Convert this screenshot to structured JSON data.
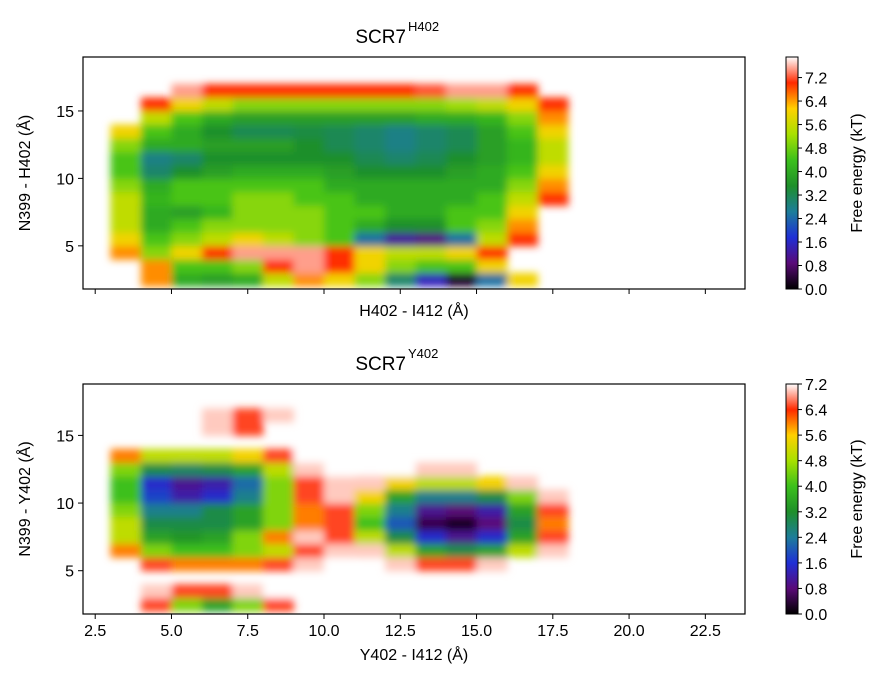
{
  "chart_data": [
    {
      "type": "heatmap",
      "title": "SCR7",
      "title_superscript": "H402",
      "xlabel": "H402 - I412 (Å)",
      "ylabel": "N399 - H402 (Å)",
      "colorbar_label": "Free energy (kT)",
      "xtick_labels": false,
      "x_edges": [
        3,
        4,
        5,
        6,
        7,
        8,
        9,
        10,
        11,
        12,
        13,
        14,
        15,
        16,
        17,
        18
      ],
      "y_edges": [
        2,
        3,
        4,
        5,
        6,
        7,
        8,
        9,
        10,
        11,
        12,
        13,
        14,
        15,
        16,
        17
      ],
      "z": [
        [
          null,
          6.5,
          4,
          3.8,
          4,
          5.5,
          6.5,
          6,
          5,
          3,
          1.5,
          0.3,
          2.5,
          6,
          null
        ],
        [
          null,
          6.5,
          4.5,
          4.5,
          5,
          7,
          7.5,
          7,
          6,
          5,
          4.5,
          4.5,
          6,
          null,
          null
        ],
        [
          6.5,
          5,
          6,
          7,
          7.5,
          7.5,
          7.5,
          7,
          6,
          5.5,
          5.5,
          6,
          7,
          null,
          null
        ],
        [
          6,
          4.5,
          5,
          5.5,
          6,
          5.5,
          5,
          4.5,
          2.5,
          1.2,
          1,
          2.5,
          5.5,
          7,
          null
        ],
        [
          5.5,
          4,
          4.5,
          5,
          5,
          5,
          5,
          4.5,
          4,
          3.5,
          3.5,
          4.5,
          5,
          6.5,
          null
        ],
        [
          5.5,
          4,
          3.8,
          4.2,
          5,
          5,
          5,
          4.5,
          4.5,
          4,
          4,
          4.5,
          4.5,
          6,
          null
        ],
        [
          5.5,
          4.2,
          4.5,
          4.5,
          5,
          5,
          4.5,
          4.5,
          4,
          4,
          4,
          4,
          4.5,
          5.5,
          7
        ],
        [
          5,
          4,
          4.5,
          4.5,
          4.5,
          4.5,
          4.5,
          4,
          4,
          4,
          4,
          4,
          4,
          5,
          6.5
        ],
        [
          4.5,
          3,
          3.5,
          3.8,
          4,
          4,
          4,
          3.8,
          3.5,
          3.5,
          3.5,
          3.8,
          4,
          4.5,
          6
        ],
        [
          4.5,
          2.8,
          3,
          3.5,
          3.5,
          3.5,
          3.5,
          3.5,
          3.2,
          3,
          3.2,
          3.5,
          3.8,
          4.2,
          5.5
        ],
        [
          5,
          4,
          4,
          3.8,
          3.8,
          3.8,
          3.5,
          3.2,
          3,
          2.8,
          3,
          3.2,
          3.8,
          4.2,
          5.5
        ],
        [
          6,
          4.5,
          4,
          3.5,
          3.2,
          3.2,
          3.3,
          3.2,
          3,
          2.8,
          3,
          3.2,
          3.8,
          4.5,
          6
        ],
        [
          null,
          5.5,
          4.5,
          4,
          3.8,
          3.8,
          3.8,
          3.8,
          3.8,
          3.8,
          4,
          4,
          4.2,
          5,
          6.5
        ],
        [
          null,
          7,
          6,
          5.5,
          5,
          5,
          5,
          5,
          5,
          5,
          5,
          5.2,
          5.5,
          6,
          7
        ],
        [
          null,
          null,
          7.5,
          7,
          7,
          7,
          7,
          7,
          7,
          7,
          7.2,
          7.5,
          7.5,
          7,
          null
        ]
      ],
      "xlim": [
        2.1,
        23.8
      ],
      "ylim": [
        1.8,
        19
      ],
      "xticks": [
        2.5,
        {
          "value": 5,
          "label": "5.0"
        },
        7.5,
        {
          "value": 10,
          "label": "10.0"
        },
        12.5,
        {
          "value": 15,
          "label": "15.0"
        },
        17.5,
        {
          "value": 20,
          "label": "20.0"
        },
        22.5
      ],
      "yticks": [
        5,
        10,
        15
      ],
      "clim": [
        0,
        7.9
      ],
      "cticks": [
        {
          "value": 0,
          "label": "0.0"
        },
        0.8,
        1.6,
        2.4,
        3.2,
        {
          "value": 4,
          "label": "4.0"
        },
        4.8,
        5.6,
        6.4,
        7.2
      ],
      "colormap": [
        "#000000",
        "#5a0a78",
        "#1f2fd6",
        "#1d7d9a",
        "#1f8f2a",
        "#3cc01c",
        "#a8e000",
        "#ffd000",
        "#ff2a00",
        "#ffffff"
      ]
    },
    {
      "type": "heatmap",
      "title": "SCR7",
      "title_superscript": "Y402",
      "xlabel": "Y402 - I412 (Å)",
      "ylabel": "N399 - Y402 (Å)",
      "colorbar_label": "Free energy (kT)",
      "xtick_labels": true,
      "x_edges": [
        3,
        4,
        5,
        6,
        7,
        8,
        9,
        10,
        11,
        12,
        13,
        14,
        15,
        16,
        17,
        18
      ],
      "y_edges": [
        2,
        3,
        4,
        5,
        6,
        7,
        8,
        9,
        10,
        11,
        12,
        13,
        14,
        15,
        16,
        17
      ],
      "z": [
        [
          null,
          6.5,
          4.5,
          3.5,
          4.5,
          6.5,
          null,
          null,
          null,
          null,
          null,
          null,
          null,
          null,
          null
        ],
        [
          null,
          7,
          6.5,
          6.5,
          7,
          7.5,
          null,
          null,
          null,
          null,
          null,
          null,
          null,
          null,
          null
        ],
        [
          null,
          null,
          null,
          null,
          null,
          null,
          null,
          null,
          null,
          null,
          null,
          null,
          null,
          null,
          null
        ],
        [
          null,
          6.5,
          6,
          6,
          6,
          6.5,
          7,
          7.5,
          null,
          7,
          6.5,
          6.5,
          7,
          null,
          null
        ],
        [
          6,
          4.5,
          4,
          4,
          4.5,
          5,
          6.5,
          7,
          7,
          5,
          3.5,
          3,
          3.5,
          5,
          7
        ],
        [
          5,
          3.5,
          3.3,
          3.5,
          4.5,
          6,
          7,
          6.5,
          5,
          3,
          1.5,
          1,
          1.5,
          3.5,
          6.5
        ],
        [
          5,
          3,
          3,
          3,
          3.5,
          4.5,
          6,
          6.5,
          4,
          2,
          0.5,
          0.2,
          0.8,
          3,
          6
        ],
        [
          4.5,
          2.5,
          2.5,
          3,
          3.5,
          4.5,
          6,
          6.5,
          4.5,
          2.5,
          1,
          0.8,
          1.2,
          3.5,
          6.5
        ],
        [
          4,
          1.8,
          1.2,
          1.5,
          2.5,
          4.5,
          6.5,
          7,
          5.5,
          3.5,
          2.5,
          2.5,
          3,
          4.5,
          7
        ],
        [
          4,
          1.5,
          1,
          1.2,
          2.2,
          4.5,
          6.5,
          7,
          7,
          5.5,
          5,
          5,
          5.5,
          7,
          null
        ],
        [
          4.5,
          3,
          2.8,
          3,
          3.5,
          5,
          7,
          7.5,
          null,
          7.5,
          7,
          7,
          null,
          null,
          null
        ],
        [
          6,
          5,
          5,
          5,
          5.5,
          6.5,
          7.5,
          null,
          null,
          null,
          null,
          null,
          null,
          null,
          null
        ],
        [
          null,
          null,
          null,
          null,
          null,
          null,
          null,
          7.5,
          null,
          null,
          null,
          null,
          null,
          null,
          null
        ],
        [
          null,
          null,
          null,
          7,
          6.5,
          null,
          null,
          null,
          null,
          null,
          null,
          null,
          null,
          null,
          null
        ],
        [
          null,
          null,
          null,
          7,
          6.5,
          7,
          null,
          null,
          null,
          null,
          null,
          null,
          null,
          null,
          null
        ]
      ],
      "xlim": [
        2.1,
        23.8
      ],
      "ylim": [
        1.8,
        18.8
      ],
      "xticks": [
        2.5,
        {
          "value": 5,
          "label": "5.0"
        },
        7.5,
        {
          "value": 10,
          "label": "10.0"
        },
        12.5,
        {
          "value": 15,
          "label": "15.0"
        },
        17.5,
        {
          "value": 20,
          "label": "20.0"
        },
        22.5
      ],
      "yticks": [
        5,
        10,
        15
      ],
      "clim": [
        0,
        7.2
      ],
      "cticks": [
        {
          "value": 0,
          "label": "0.0"
        },
        0.8,
        1.6,
        2.4,
        3.2,
        {
          "value": 4,
          "label": "4.0"
        },
        4.8,
        5.6,
        6.4,
        7.2
      ],
      "colormap": [
        "#000000",
        "#5a0a78",
        "#1f2fd6",
        "#1d7d9a",
        "#1f8f2a",
        "#3cc01c",
        "#a8e000",
        "#ffd000",
        "#ff2a00",
        "#ffffff"
      ]
    }
  ]
}
